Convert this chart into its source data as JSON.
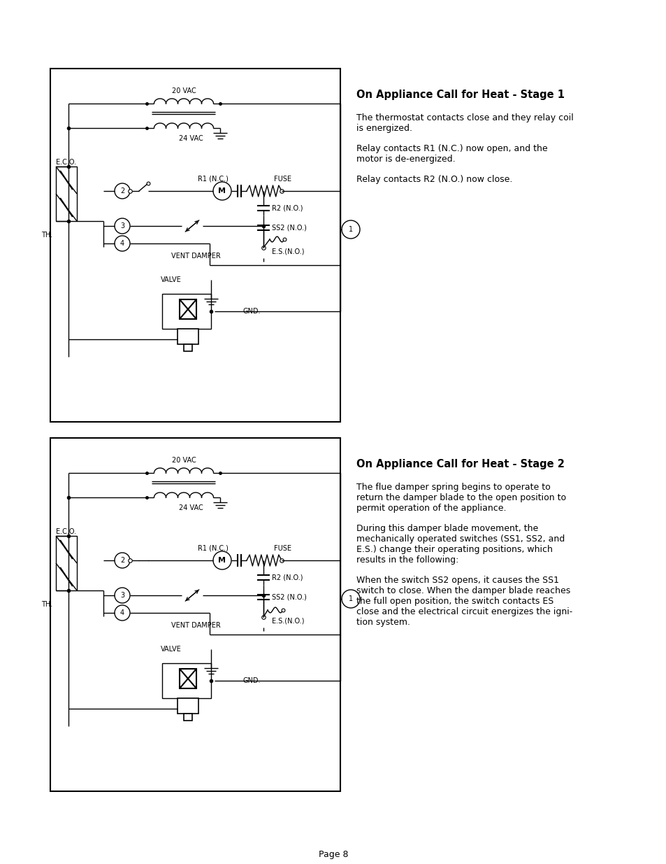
{
  "page_bg": "#ffffff",
  "line_color": "#000000",
  "page_number": "Page 8",
  "stage1_title": "On Appliance Call for Heat - Stage 1",
  "stage1_p1": "The thermostat contacts close and they relay coil\nis energized.",
  "stage1_p2": "Relay contacts R1 (N.C.) now open, and the\nmotor is de-energized.",
  "stage1_p3": "Relay contacts R2 (N.O.) now close.",
  "stage2_title": "On Appliance Call for Heat - Stage 2",
  "stage2_p1": "The flue damper spring begins to operate to\nreturn the damper blade to the open position to\npermit operation of the appliance.",
  "stage2_p2": "During this damper blade movement, the\nmechanically operated switches (SS1, SS2, and\nE.S.) change their operating positions, which\nresults in the following:",
  "stage2_p3": "When the switch SS2 opens, it causes the SS1\nswitch to close. When the damper blade reaches\nthe full open position, the switch contacts ES\nclose and the electrical circuit energizes the igni-\ntion system."
}
